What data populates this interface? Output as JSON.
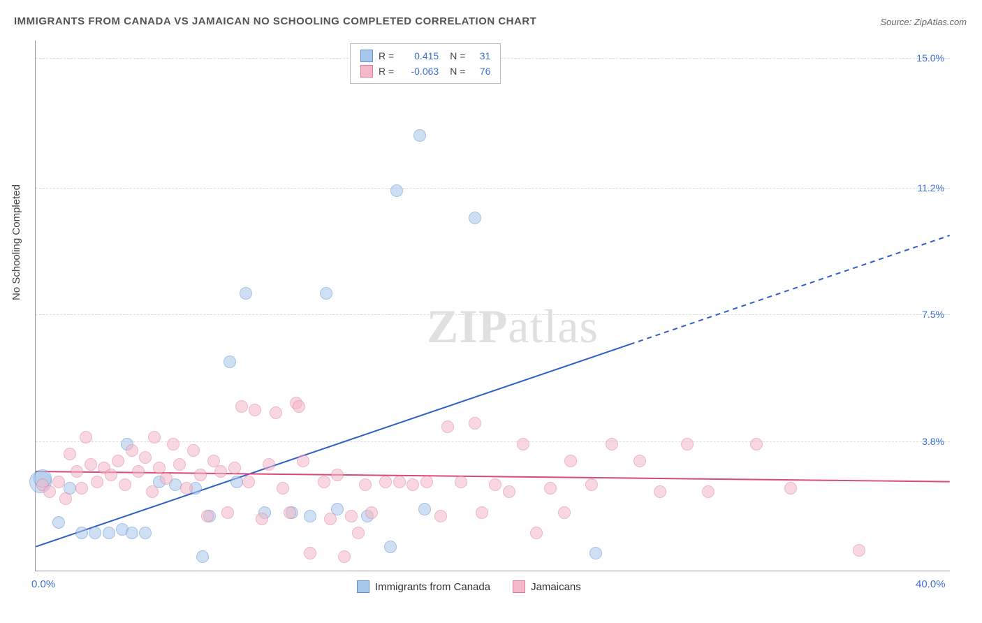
{
  "title": "IMMIGRANTS FROM CANADA VS JAMAICAN NO SCHOOLING COMPLETED CORRELATION CHART",
  "source": "Source: ZipAtlas.com",
  "y_axis_label": "No Schooling Completed",
  "watermark_zip": "ZIP",
  "watermark_atlas": "atlas",
  "chart": {
    "type": "scatter",
    "xlim": [
      0,
      40
    ],
    "ylim": [
      0,
      15.5
    ],
    "x_ticks": [
      {
        "value": 0,
        "label": "0.0%"
      },
      {
        "value": 40,
        "label": "40.0%"
      }
    ],
    "y_ticks": [
      {
        "value": 3.8,
        "label": "3.8%"
      },
      {
        "value": 7.5,
        "label": "7.5%"
      },
      {
        "value": 11.2,
        "label": "11.2%"
      },
      {
        "value": 15.0,
        "label": "15.0%"
      }
    ],
    "background_color": "#ffffff",
    "grid_color": "#dddddd",
    "point_radius": 9,
    "point_opacity": 0.55,
    "series": [
      {
        "name": "Immigrants from Canada",
        "color_fill": "#a8c7ec",
        "color_stroke": "#5b8fd6",
        "R": "0.415",
        "N": "31",
        "trend": {
          "x1": 0,
          "y1": 0.7,
          "x2": 40,
          "y2": 9.8,
          "solid_until_x": 26,
          "color": "#2d5fc4",
          "width": 2
        },
        "points": [
          {
            "x": 0.2,
            "y": 2.6,
            "r": 16
          },
          {
            "x": 0.3,
            "y": 2.7,
            "r": 13
          },
          {
            "x": 1.0,
            "y": 1.4
          },
          {
            "x": 1.5,
            "y": 2.4
          },
          {
            "x": 2.0,
            "y": 1.1
          },
          {
            "x": 2.6,
            "y": 1.1
          },
          {
            "x": 3.2,
            "y": 1.1
          },
          {
            "x": 3.8,
            "y": 1.2
          },
          {
            "x": 4.2,
            "y": 1.1
          },
          {
            "x": 4.0,
            "y": 3.7
          },
          {
            "x": 4.8,
            "y": 1.1
          },
          {
            "x": 5.4,
            "y": 2.6
          },
          {
            "x": 6.1,
            "y": 2.5
          },
          {
            "x": 7.0,
            "y": 2.4
          },
          {
            "x": 7.3,
            "y": 0.4
          },
          {
            "x": 7.6,
            "y": 1.6
          },
          {
            "x": 8.5,
            "y": 6.1
          },
          {
            "x": 8.8,
            "y": 2.6
          },
          {
            "x": 9.2,
            "y": 8.1
          },
          {
            "x": 10.0,
            "y": 1.7
          },
          {
            "x": 11.2,
            "y": 1.7
          },
          {
            "x": 12.0,
            "y": 1.6
          },
          {
            "x": 12.7,
            "y": 8.1
          },
          {
            "x": 13.2,
            "y": 1.8
          },
          {
            "x": 14.5,
            "y": 1.6
          },
          {
            "x": 15.5,
            "y": 0.7
          },
          {
            "x": 15.8,
            "y": 11.1
          },
          {
            "x": 16.8,
            "y": 12.7
          },
          {
            "x": 17.0,
            "y": 1.8
          },
          {
            "x": 19.2,
            "y": 10.3
          },
          {
            "x": 24.5,
            "y": 0.5
          }
        ]
      },
      {
        "name": "Jamaicans",
        "color_fill": "#f4b8c8",
        "color_stroke": "#e47a9a",
        "R": "-0.063",
        "N": "76",
        "trend": {
          "x1": 0,
          "y1": 2.9,
          "x2": 40,
          "y2": 2.6,
          "solid_until_x": 40,
          "color": "#d94a77",
          "width": 2
        },
        "points": [
          {
            "x": 0.3,
            "y": 2.5
          },
          {
            "x": 0.6,
            "y": 2.3
          },
          {
            "x": 1.0,
            "y": 2.6
          },
          {
            "x": 1.3,
            "y": 2.1
          },
          {
            "x": 1.5,
            "y": 3.4
          },
          {
            "x": 1.8,
            "y": 2.9
          },
          {
            "x": 2.0,
            "y": 2.4
          },
          {
            "x": 2.4,
            "y": 3.1
          },
          {
            "x": 2.7,
            "y": 2.6
          },
          {
            "x": 2.2,
            "y": 3.9
          },
          {
            "x": 3.0,
            "y": 3.0
          },
          {
            "x": 3.3,
            "y": 2.8
          },
          {
            "x": 3.6,
            "y": 3.2
          },
          {
            "x": 3.9,
            "y": 2.5
          },
          {
            "x": 4.2,
            "y": 3.5
          },
          {
            "x": 4.5,
            "y": 2.9
          },
          {
            "x": 4.8,
            "y": 3.3
          },
          {
            "x": 5.1,
            "y": 2.3
          },
          {
            "x": 5.4,
            "y": 3.0
          },
          {
            "x": 5.7,
            "y": 2.7
          },
          {
            "x": 5.2,
            "y": 3.9
          },
          {
            "x": 6.0,
            "y": 3.7
          },
          {
            "x": 6.3,
            "y": 3.1
          },
          {
            "x": 6.6,
            "y": 2.4
          },
          {
            "x": 6.9,
            "y": 3.5
          },
          {
            "x": 7.2,
            "y": 2.8
          },
          {
            "x": 7.5,
            "y": 1.6
          },
          {
            "x": 7.8,
            "y": 3.2
          },
          {
            "x": 8.1,
            "y": 2.9
          },
          {
            "x": 8.4,
            "y": 1.7
          },
          {
            "x": 8.7,
            "y": 3.0
          },
          {
            "x": 9.0,
            "y": 4.8
          },
          {
            "x": 9.3,
            "y": 2.6
          },
          {
            "x": 9.6,
            "y": 4.7
          },
          {
            "x": 9.9,
            "y": 1.5
          },
          {
            "x": 10.2,
            "y": 3.1
          },
          {
            "x": 10.5,
            "y": 4.6
          },
          {
            "x": 10.8,
            "y": 2.4
          },
          {
            "x": 11.1,
            "y": 1.7
          },
          {
            "x": 11.4,
            "y": 4.9
          },
          {
            "x": 11.7,
            "y": 3.2
          },
          {
            "x": 12.0,
            "y": 0.5
          },
          {
            "x": 11.5,
            "y": 4.8
          },
          {
            "x": 12.6,
            "y": 2.6
          },
          {
            "x": 12.9,
            "y": 1.5
          },
          {
            "x": 13.2,
            "y": 2.8
          },
          {
            "x": 13.5,
            "y": 0.4
          },
          {
            "x": 13.8,
            "y": 1.6
          },
          {
            "x": 14.1,
            "y": 1.1
          },
          {
            "x": 14.4,
            "y": 2.5
          },
          {
            "x": 14.7,
            "y": 1.7
          },
          {
            "x": 15.3,
            "y": 2.6
          },
          {
            "x": 15.9,
            "y": 2.6
          },
          {
            "x": 16.5,
            "y": 2.5
          },
          {
            "x": 17.1,
            "y": 2.6
          },
          {
            "x": 17.7,
            "y": 1.6
          },
          {
            "x": 18.0,
            "y": 4.2
          },
          {
            "x": 18.6,
            "y": 2.6
          },
          {
            "x": 19.2,
            "y": 4.3
          },
          {
            "x": 19.5,
            "y": 1.7
          },
          {
            "x": 20.1,
            "y": 2.5
          },
          {
            "x": 20.7,
            "y": 2.3
          },
          {
            "x": 21.3,
            "y": 3.7
          },
          {
            "x": 21.9,
            "y": 1.1
          },
          {
            "x": 22.5,
            "y": 2.4
          },
          {
            "x": 23.1,
            "y": 1.7
          },
          {
            "x": 23.4,
            "y": 3.2
          },
          {
            "x": 24.3,
            "y": 2.5
          },
          {
            "x": 25.2,
            "y": 3.7
          },
          {
            "x": 26.4,
            "y": 3.2
          },
          {
            "x": 27.3,
            "y": 2.3
          },
          {
            "x": 28.5,
            "y": 3.7
          },
          {
            "x": 29.4,
            "y": 2.3
          },
          {
            "x": 31.5,
            "y": 3.7
          },
          {
            "x": 33.0,
            "y": 2.4
          },
          {
            "x": 36.0,
            "y": 0.6
          }
        ]
      }
    ]
  }
}
